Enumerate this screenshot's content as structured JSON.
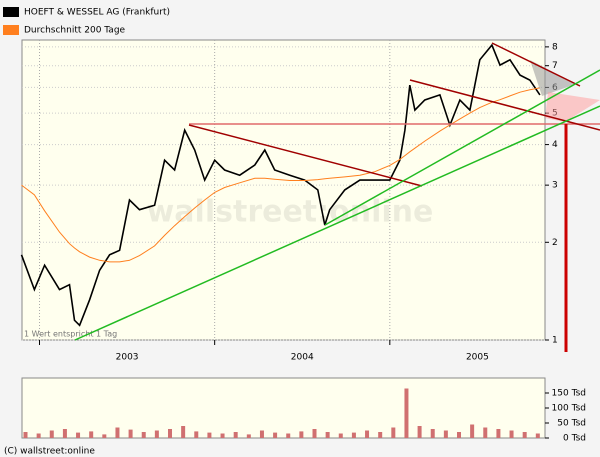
{
  "chart_data": [
    {
      "type": "line",
      "log_y": true,
      "grid": true,
      "watermark": "wallstreet:online",
      "note": "1 Wert entspricht 1 Tag",
      "x": [
        2002.897,
        2002.971,
        2003.029,
        2003.114,
        2003.171,
        2003.2,
        2003.229,
        2003.286,
        2003.343,
        2003.4,
        2003.457,
        2003.514,
        2003.571,
        2003.657,
        2003.714,
        2003.771,
        2003.829,
        2003.886,
        2003.943,
        2004.0,
        2004.057,
        2004.143,
        2004.229,
        2004.286,
        2004.343,
        2004.429,
        2004.514,
        2004.589,
        2004.629,
        2004.657,
        2004.743,
        2004.829,
        2004.914,
        2005.0,
        2005.057,
        2005.086,
        2005.114,
        2005.143,
        2005.2,
        2005.286,
        2005.343,
        2005.4,
        2005.457,
        2005.514,
        2005.583,
        2005.629,
        2005.686,
        2005.743,
        2005.8,
        2005.857
      ],
      "series": [
        {
          "name": "HOEFT & WESSEL AG (Frankfurt)",
          "color": "#000000",
          "values": [
            1.83,
            1.43,
            1.7,
            1.43,
            1.48,
            1.15,
            1.11,
            1.33,
            1.64,
            1.83,
            1.89,
            2.7,
            2.52,
            2.6,
            3.58,
            3.34,
            4.43,
            3.85,
            3.11,
            3.58,
            3.34,
            3.22,
            3.46,
            3.85,
            3.34,
            3.22,
            3.11,
            2.9,
            2.26,
            2.52,
            2.9,
            3.11,
            3.11,
            3.11,
            3.58,
            4.43,
            6.1,
            5.11,
            5.49,
            5.69,
            4.59,
            5.49,
            5.11,
            7.3,
            8.1,
            7.03,
            7.3,
            6.55,
            6.32,
            5.69
          ]
        },
        {
          "name": "Durchschnitt 200 Tage",
          "color": "#ff7f1e",
          "values": [
            3.0,
            2.8,
            2.5,
            2.15,
            1.98,
            1.92,
            1.87,
            1.8,
            1.76,
            1.74,
            1.74,
            1.76,
            1.82,
            1.95,
            2.1,
            2.25,
            2.4,
            2.55,
            2.7,
            2.85,
            2.95,
            3.05,
            3.15,
            3.15,
            3.13,
            3.1,
            3.1,
            3.12,
            3.14,
            3.15,
            3.18,
            3.22,
            3.3,
            3.45,
            3.6,
            3.7,
            3.8,
            3.9,
            4.1,
            4.4,
            4.6,
            4.8,
            5.0,
            5.2,
            5.4,
            5.5,
            5.65,
            5.8,
            5.9,
            5.98
          ]
        }
      ],
      "xlim": [
        2002.9,
        2005.886
      ],
      "xticks": [
        2003,
        2004,
        2005
      ],
      "ylim": [
        1,
        8.4
      ],
      "yticks": [
        1,
        2,
        3,
        4,
        5,
        6,
        7,
        8
      ]
    },
    {
      "type": "bar",
      "color": "#d07070",
      "footer": "(C) wallstreet:online",
      "x": [
        2002.92,
        2002.995,
        2003.07,
        2003.145,
        2003.22,
        2003.295,
        2003.37,
        2003.445,
        2003.52,
        2003.595,
        2003.67,
        2003.745,
        2003.82,
        2003.895,
        2003.97,
        2004.045,
        2004.12,
        2004.195,
        2004.27,
        2004.345,
        2004.42,
        2004.495,
        2004.57,
        2004.645,
        2004.72,
        2004.795,
        2004.87,
        2004.945,
        2005.02,
        2005.095,
        2005.17,
        2005.245,
        2005.32,
        2005.395,
        2005.47,
        2005.545,
        2005.62,
        2005.695,
        2005.77,
        2005.845
      ],
      "values": [
        20,
        15,
        25,
        30,
        18,
        22,
        12,
        35,
        28,
        20,
        25,
        30,
        40,
        22,
        18,
        15,
        20,
        12,
        25,
        18,
        15,
        22,
        30,
        20,
        15,
        18,
        25,
        20,
        35,
        165,
        40,
        30,
        25,
        20,
        45,
        35,
        30,
        25,
        20,
        15
      ],
      "xlim": [
        2002.9,
        2005.886
      ],
      "ylim": [
        0,
        200
      ],
      "yticks": [
        {
          "value": 0,
          "label": "0 Tsd"
        },
        {
          "value": 50,
          "label": "50 Tsd"
        },
        {
          "value": 100,
          "label": "100 Tsd"
        },
        {
          "value": 150,
          "label": "150 Tsd"
        }
      ]
    }
  ]
}
